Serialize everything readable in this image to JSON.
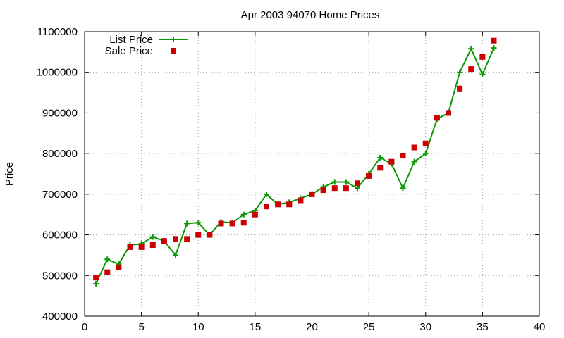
{
  "chart_data": {
    "type": "line",
    "title": "Apr 2003 94070 Home Prices",
    "xlabel": "",
    "ylabel": "Price",
    "xlim": [
      0,
      40
    ],
    "ylim": [
      400000,
      1100000
    ],
    "xticks": [
      0,
      5,
      10,
      15,
      20,
      25,
      30,
      35,
      40
    ],
    "yticks": [
      400000,
      500000,
      600000,
      700000,
      800000,
      900000,
      1000000,
      1100000
    ],
    "grid": true,
    "legend_position": "top-left",
    "x": [
      1,
      2,
      3,
      4,
      5,
      6,
      7,
      8,
      9,
      10,
      11,
      12,
      13,
      14,
      15,
      16,
      17,
      18,
      19,
      20,
      21,
      22,
      23,
      24,
      25,
      26,
      27,
      28,
      29,
      30,
      31,
      32,
      33,
      34,
      35,
      36
    ],
    "series": [
      {
        "name": "List Price",
        "style": "line-plus",
        "color": "#0a9900",
        "values": [
          480000,
          540000,
          528000,
          575000,
          578000,
          595000,
          585000,
          550000,
          628000,
          630000,
          600000,
          632000,
          630000,
          650000,
          660000,
          700000,
          675000,
          680000,
          690000,
          700000,
          718000,
          730000,
          730000,
          715000,
          750000,
          790000,
          775000,
          715000,
          780000,
          800000,
          885000,
          900000,
          1000000,
          1058000,
          995000,
          1060000
        ]
      },
      {
        "name": "Sale Price",
        "style": "square-points",
        "color": "#cc0000",
        "values": [
          495000,
          508000,
          520000,
          570000,
          570000,
          575000,
          585000,
          590000,
          590000,
          600000,
          600000,
          628000,
          628000,
          630000,
          650000,
          670000,
          675000,
          675000,
          685000,
          700000,
          710000,
          715000,
          715000,
          727000,
          745000,
          765000,
          780000,
          795000,
          815000,
          825000,
          888000,
          900000,
          960000,
          1008000,
          1038000,
          1078000
        ]
      }
    ]
  }
}
